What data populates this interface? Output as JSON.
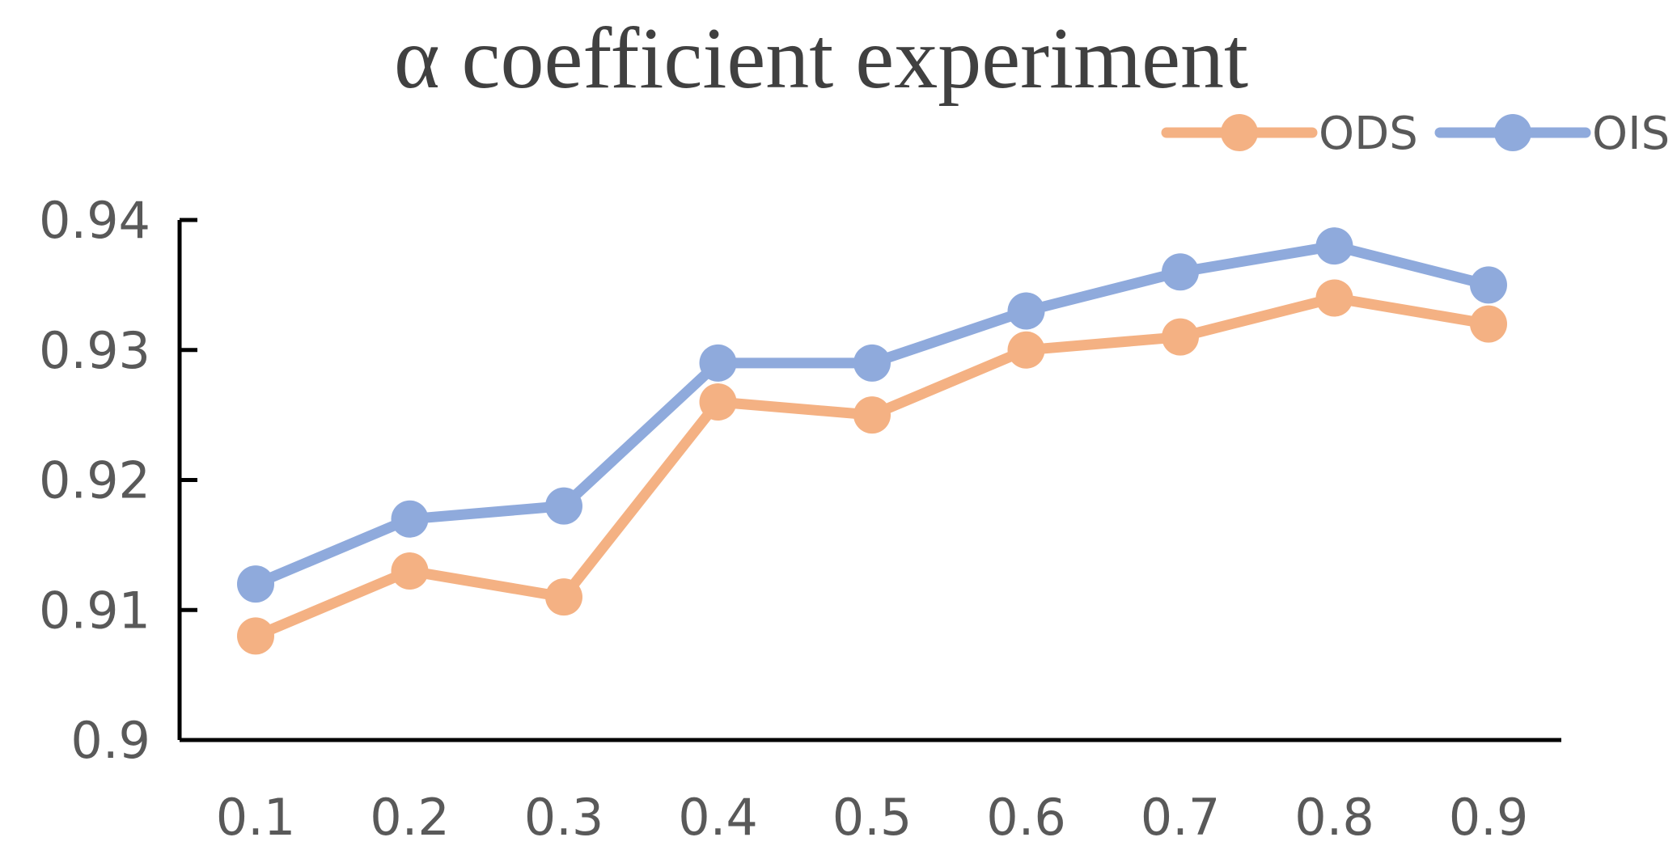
{
  "chart_data": {
    "type": "line",
    "title": "α coefficient experiment",
    "xlabel": "",
    "ylabel": "",
    "categories": [
      "0.1",
      "0.2",
      "0.3",
      "0.4",
      "0.5",
      "0.6",
      "0.7",
      "0.8",
      "0.9"
    ],
    "ylim": [
      0.9,
      0.94
    ],
    "yticks": [
      "0.9",
      "0.91",
      "0.92",
      "0.93",
      "0.94"
    ],
    "grid": false,
    "legend": "top-right",
    "series": [
      {
        "name": "ODS",
        "color": "#F4B183",
        "values": [
          0.908,
          0.913,
          0.911,
          0.926,
          0.925,
          0.93,
          0.931,
          0.934,
          0.932
        ]
      },
      {
        "name": "OIS",
        "color": "#8FAADC",
        "values": [
          0.912,
          0.917,
          0.918,
          0.929,
          0.929,
          0.933,
          0.936,
          0.938,
          0.935
        ]
      }
    ]
  }
}
